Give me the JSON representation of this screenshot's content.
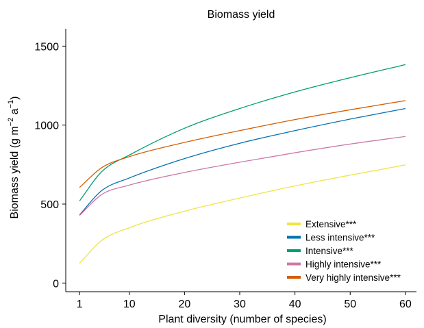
{
  "chart_data": {
    "type": "line",
    "title": "Biomass yield",
    "xlabel": "Plant diversity (number of species)",
    "ylabel_main": "Biomass yield (g m",
    "ylabel_exp1": "−2",
    "ylabel_mid": " a",
    "ylabel_exp2": "−1",
    "ylabel_end": ")",
    "xlim": [
      -1.5,
      62
    ],
    "ylim": [
      -55,
      1610
    ],
    "xticks": [
      1,
      10,
      20,
      30,
      40,
      50,
      60
    ],
    "yticks": [
      0,
      500,
      1000,
      1500
    ],
    "grid": false,
    "legend_position": "bottom-right",
    "x": [
      1,
      5,
      10,
      20,
      30,
      40,
      50,
      60
    ],
    "series": [
      {
        "name": "Extensive***",
        "color": "#F0E442",
        "values": [
          125,
          270,
          350,
          455,
          538,
          615,
          683,
          748
        ]
      },
      {
        "name": "Less intensive***",
        "color": "#0072B2",
        "values": [
          432,
          585,
          665,
          788,
          885,
          965,
          1038,
          1105
        ]
      },
      {
        "name": "Intensive***",
        "color": "#009E73",
        "values": [
          520,
          705,
          810,
          980,
          1105,
          1210,
          1300,
          1383
        ]
      },
      {
        "name": "Highly intensive***",
        "color": "#CC79A7",
        "values": [
          428,
          560,
          620,
          700,
          765,
          825,
          880,
          928
        ]
      },
      {
        "name": "Very highly intensive***",
        "color": "#D55E00",
        "values": [
          605,
          730,
          800,
          890,
          965,
          1035,
          1097,
          1155
        ]
      }
    ]
  }
}
